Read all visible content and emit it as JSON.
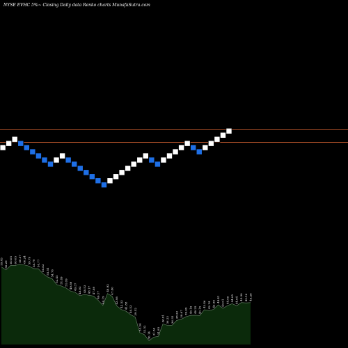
{
  "header": {
    "text": "NYSE EVHC 5%~ Closing Daily data Renko charts MunafaSutra.com"
  },
  "colors": {
    "background": "#000000",
    "brick_up": "#ffffff",
    "brick_down": "#1e6fe6",
    "brick_outline": "#000000",
    "reference_lines": "#b5532a",
    "volume_fill": "#0b2a0b",
    "volume_stroke": "#6e8a6e",
    "label": "#ffffff"
  },
  "chart_data": {
    "type": "renko",
    "title": "NYSE EVHC 5%~ Closing Daily data Renko charts MunafaSutra.com",
    "brick_directions": [
      "up",
      "up",
      "up",
      "down",
      "down",
      "down",
      "down",
      "down",
      "down",
      "up",
      "up",
      "down",
      "down",
      "down",
      "down",
      "down",
      "down",
      "down",
      "up",
      "up",
      "up",
      "up",
      "up",
      "up",
      "up",
      "down",
      "down",
      "up",
      "up",
      "up",
      "up",
      "up",
      "down",
      "down",
      "up",
      "up",
      "up",
      "up",
      "up"
    ],
    "reference_lines": [
      {
        "label": "upper",
        "value": 45.9
      },
      {
        "label": "lower",
        "value": 43.6
      }
    ],
    "price_labels": [
      "59.45",
      "58.29",
      "60.05",
      "60.05",
      "60.57",
      "60.24",
      "59.79",
      "58.79",
      "58.77",
      "56.83",
      "55.51",
      "54.76",
      "52.45",
      "51.89",
      "51.09",
      "49.89",
      "49.37",
      "48.03",
      "48.53",
      "48.17",
      "47.89",
      "46.17",
      "44.19",
      "48.92",
      "47.80",
      "43.98",
      "42.53",
      "41.88",
      "40.53",
      "39.52",
      "33.34",
      "32.52",
      "30.14",
      "31.56",
      "31.85",
      "36.81",
      "36.23",
      "36.32",
      "38.22",
      "38.67",
      "39.69",
      "40.19",
      "40.25",
      "40.15",
      "42.46",
      "42.14",
      "42.59",
      "44.41",
      "43.01",
      "44.09",
      "44.85",
      "44.04",
      "45.30",
      "45.16",
      "45.28"
    ],
    "ylim": [
      30,
      61
    ]
  }
}
